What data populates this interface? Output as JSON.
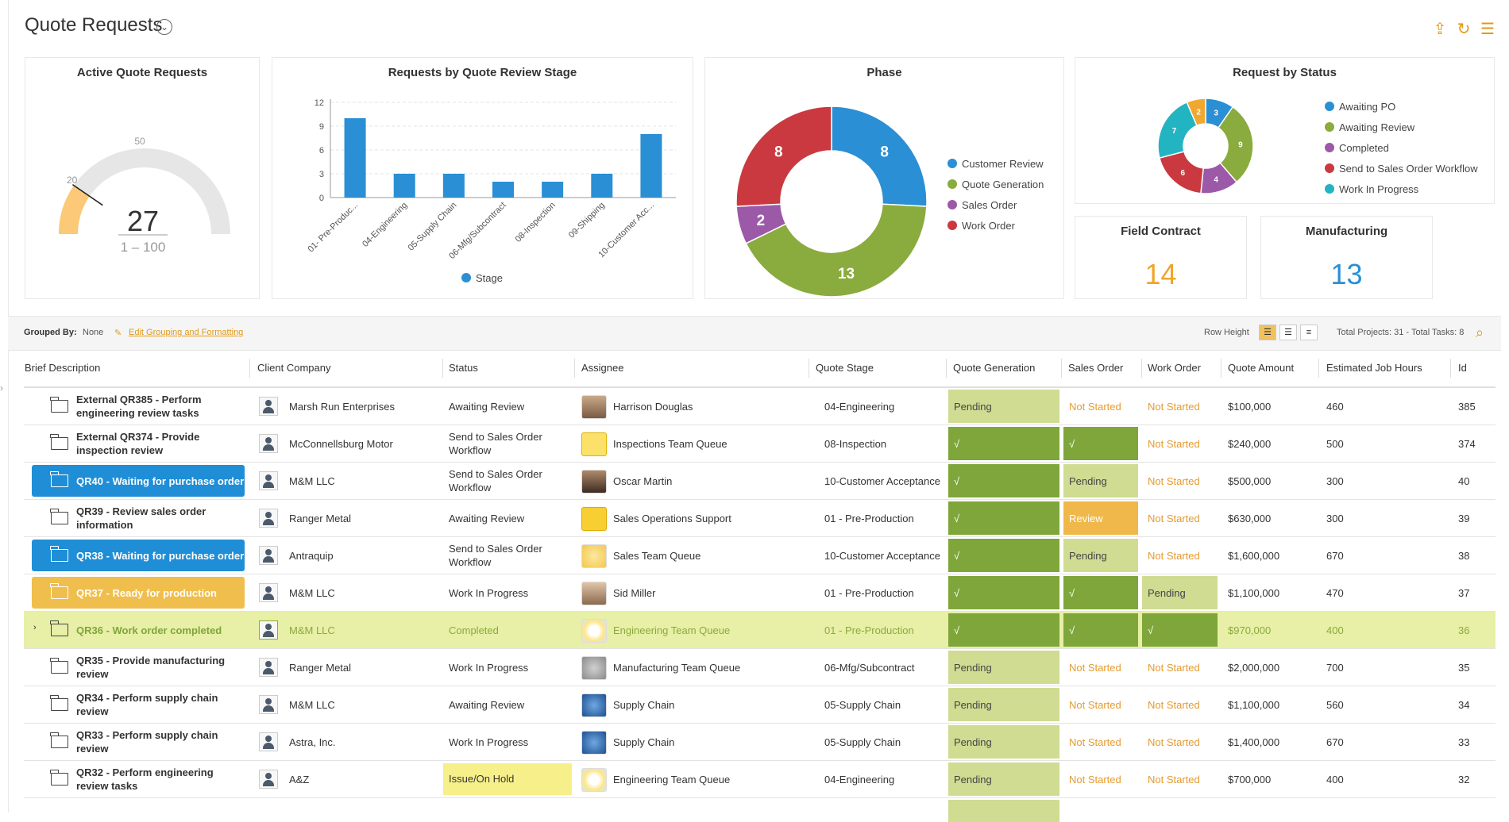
{
  "header": {
    "title": "Quote Requests",
    "icons": [
      "cloud-upload-icon",
      "refresh-icon",
      "list-icon"
    ]
  },
  "active_quote_requests": {
    "title": "Active Quote Requests",
    "value": "27",
    "range": "1 – 100",
    "mark_20": "20",
    "mark_50": "50",
    "min": 1,
    "max": 100,
    "threshold": 20
  },
  "stage_chart": {
    "title": "Requests by Quote Review Stage",
    "legend": "Stage",
    "y_ticks": [
      "0",
      "3",
      "6",
      "9",
      "12"
    ]
  },
  "phase_chart": {
    "title": "Phase",
    "legend": [
      "Customer Review",
      "Quote Generation",
      "Sales Order",
      "Work Order"
    ],
    "labels": [
      "8",
      "13",
      "2",
      "8"
    ]
  },
  "status_chart": {
    "title": "Request by Status",
    "legend": [
      "Awaiting PO",
      "Awaiting Review",
      "Completed",
      "Send to Sales Order Workflow",
      "Work In Progress"
    ],
    "labels": [
      "2",
      "3",
      "9",
      "4",
      "6",
      "7"
    ]
  },
  "field_contract": {
    "title": "Field Contract",
    "value": "14"
  },
  "manufacturing": {
    "title": "Manufacturing",
    "value": "13"
  },
  "toolbar": {
    "grouped_by_label": "Grouped By:",
    "grouped_by_value": "None",
    "edit_link": "Edit Grouping and Formatting",
    "row_height_label": "Row Height",
    "totals": "Total Projects: 31 - Total Tasks: 8"
  },
  "columns": [
    "Brief Description",
    "Client Company",
    "Status",
    "Assignee",
    "Quote Stage",
    "Quote Generation",
    "Sales Order",
    "Work Order",
    "Quote Amount",
    "Estimated Job Hours",
    "Id"
  ],
  "rows": [
    {
      "brief": "External QR385 - Perform engineering review tasks",
      "client": "Marsh Run Enterprises",
      "status": "Awaiting Review",
      "assignee": "Harrison Douglas",
      "stage": "04-Engineering",
      "qg": "Pending",
      "so": "Not Started",
      "wo": "Not Started",
      "amount": "$100,000",
      "hours": "460",
      "id": "385"
    },
    {
      "brief": "External QR374 - Provide inspection review",
      "client": "McConnellsburg Motor",
      "status": "Send to Sales Order Workflow",
      "assignee": "Inspections Team Queue",
      "stage": "08-Inspection",
      "qg": "√",
      "so": "√",
      "wo": "Not Started",
      "amount": "$240,000",
      "hours": "500",
      "id": "374"
    },
    {
      "brief": "QR40 - Waiting for purchase order",
      "client": "M&M LLC",
      "status": "Send to Sales Order Workflow",
      "assignee": "Oscar Martin",
      "stage": "10-Customer Acceptance",
      "qg": "√",
      "so": "Pending",
      "wo": "Not Started",
      "amount": "$500,000",
      "hours": "300",
      "id": "40"
    },
    {
      "brief": "QR39 - Review sales order information",
      "client": "Ranger Metal",
      "status": "Awaiting Review",
      "assignee": "Sales Operations Support",
      "stage": "01 - Pre-Production",
      "qg": "√",
      "so": "Review",
      "wo": "Not Started",
      "amount": "$630,000",
      "hours": "300",
      "id": "39"
    },
    {
      "brief": "QR38 - Waiting for purchase order",
      "client": "Antraquip",
      "status": "Send to Sales Order Workflow",
      "assignee": "Sales Team Queue",
      "stage": "10-Customer Acceptance",
      "qg": "√",
      "so": "Pending",
      "wo": "Not Started",
      "amount": "$1,600,000",
      "hours": "670",
      "id": "38"
    },
    {
      "brief": "QR37 - Ready for production",
      "client": "M&M LLC",
      "status": "Work In Progress",
      "assignee": "Sid Miller",
      "stage": "01 - Pre-Production",
      "qg": "√",
      "so": "√",
      "wo": "Pending",
      "amount": "$1,100,000",
      "hours": "470",
      "id": "37"
    },
    {
      "brief": "QR36 - Work order completed",
      "client": "M&M LLC",
      "status": "Completed",
      "assignee": "Engineering Team Queue",
      "stage": "01 - Pre-Production",
      "qg": "√",
      "so": "√",
      "wo": "√",
      "amount": "$970,000",
      "hours": "400",
      "id": "36"
    },
    {
      "brief": "QR35 - Provide manufacturing review",
      "client": "Ranger Metal",
      "status": "Work In Progress",
      "assignee": "Manufacturing Team Queue",
      "stage": "06-Mfg/Subcontract",
      "qg": "Pending",
      "so": "Not Started",
      "wo": "Not Started",
      "amount": "$2,000,000",
      "hours": "700",
      "id": "35"
    },
    {
      "brief": "QR34 - Perform supply chain review",
      "client": "M&M LLC",
      "status": "Awaiting Review",
      "assignee": "Supply Chain",
      "stage": "05-Supply Chain",
      "qg": "Pending",
      "so": "Not Started",
      "wo": "Not Started",
      "amount": "$1,100,000",
      "hours": "560",
      "id": "34"
    },
    {
      "brief": "QR33 - Perform supply chain review",
      "client": "Astra, Inc.",
      "status": "Work In Progress",
      "assignee": "Supply Chain",
      "stage": "05-Supply Chain",
      "qg": "Pending",
      "so": "Not Started",
      "wo": "Not Started",
      "amount": "$1,400,000",
      "hours": "670",
      "id": "33"
    },
    {
      "brief": "QR32 - Perform engineering review tasks",
      "client": "A&Z",
      "status": "Issue/On Hold",
      "assignee": "Engineering Team Queue",
      "stage": "04-Engineering",
      "qg": "Pending",
      "so": "Not Started",
      "wo": "Not Started",
      "amount": "$700,000",
      "hours": "400",
      "id": "32"
    }
  ],
  "chart_data": [
    {
      "type": "bar",
      "title": "Requests by Quote Review Stage",
      "categories": [
        "01- Pre-Produc...",
        "04-Engineering",
        "05-Supply Chain",
        "06-Mfg/Subcontract",
        "08-Inspection",
        "09-Shipping",
        "10-Customer Acc..."
      ],
      "series": [
        {
          "name": "Stage",
          "values": [
            10,
            3,
            3,
            2,
            2,
            3,
            8
          ]
        }
      ],
      "ylim": [
        0,
        12
      ],
      "color": "#2a8fd4"
    },
    {
      "type": "pie",
      "title": "Phase",
      "categories": [
        "Customer Review",
        "Quote Generation",
        "Sales Order",
        "Work Order"
      ],
      "values": [
        8,
        13,
        2,
        8
      ],
      "colors": [
        "#2a8fd4",
        "#8aab3e",
        "#9b59a8",
        "#c9393f"
      ]
    },
    {
      "type": "pie",
      "title": "Request by Status",
      "categories": [
        "Awaiting PO",
        "Awaiting Review",
        "Completed",
        "Send to Sales Order Workflow",
        "Work In Progress"
      ],
      "segments": [
        {
          "label": "Awaiting PO",
          "value": 3,
          "color": "#2a8fd4"
        },
        {
          "label": "Awaiting Review",
          "value": 9,
          "color": "#8aab3e"
        },
        {
          "label": "Completed",
          "value": 4,
          "color": "#9b59a8"
        },
        {
          "label": "Send to Sales Order Workflow",
          "value": 6,
          "color": "#c9393f"
        },
        {
          "label": "Work In Progress",
          "value": 7,
          "color": "#23b4c2"
        },
        {
          "label": "",
          "value": 2,
          "color": "#f0a830"
        }
      ]
    }
  ],
  "colors": {
    "accent_blue": "#1f8ed6",
    "green_done": "#7ea63a",
    "pending_bg": "#cfdc92",
    "review_orange": "#f0b84a",
    "not_started": "#e59b30",
    "highlight_row": "#e8efa6",
    "big_orange": "#f0a52a",
    "big_blue": "#2a8fd4"
  }
}
